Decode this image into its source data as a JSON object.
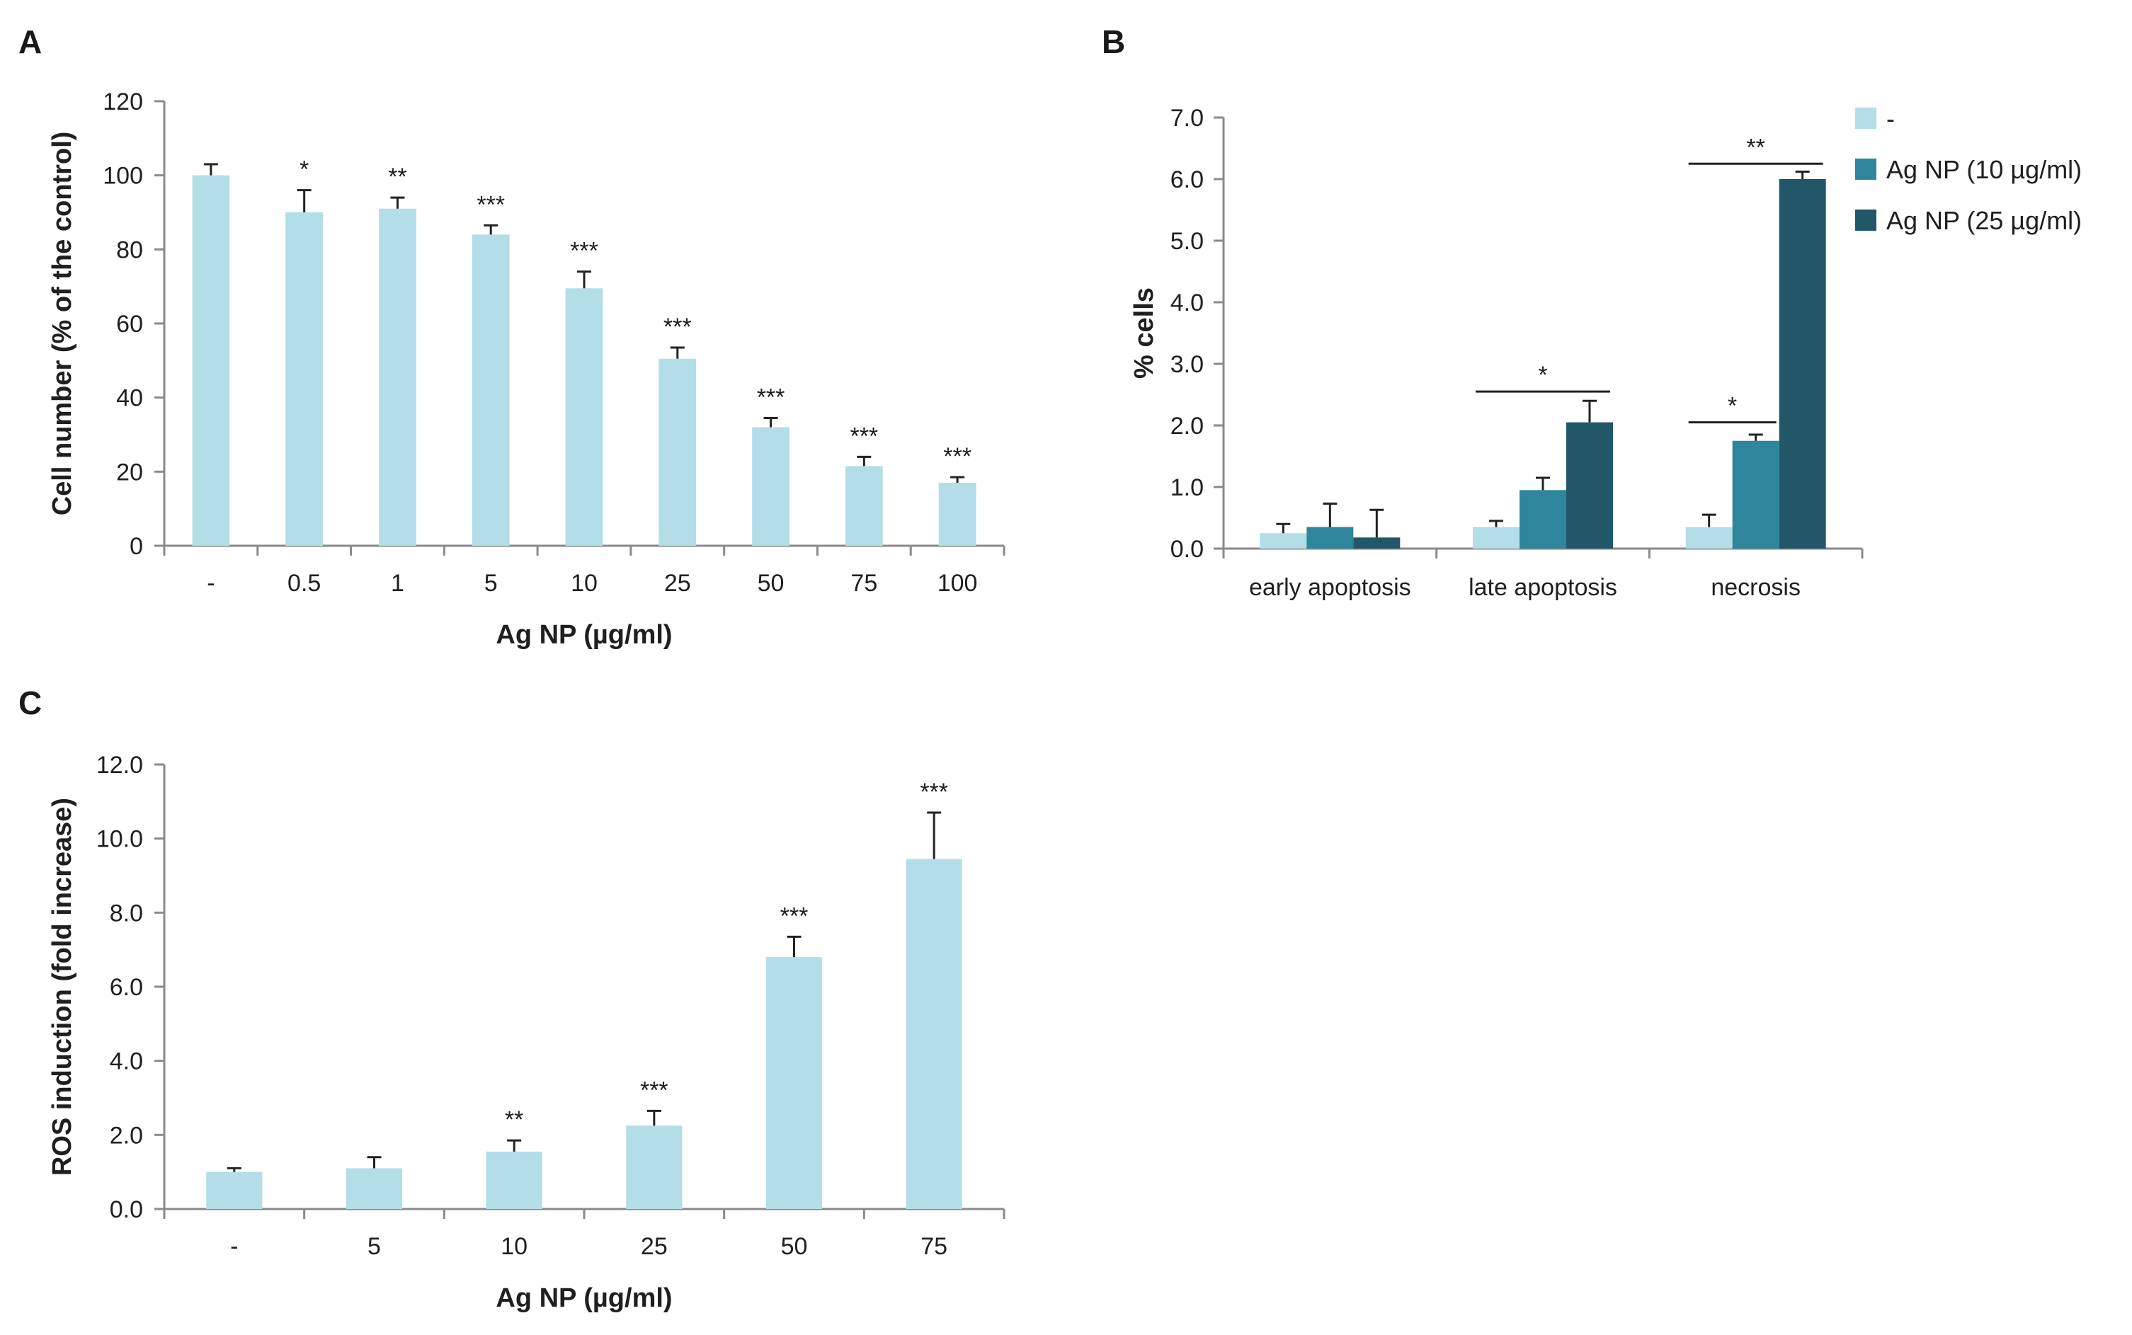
{
  "panels": {
    "a": "A",
    "b": "B",
    "c": "C"
  },
  "colors": {
    "light": "#b3dde7",
    "mid": "#2e859c",
    "dark": "#215767",
    "axis": "#8a8a8a",
    "text": "#1f1f1f"
  },
  "chart_data": [
    {
      "id": "A",
      "type": "bar",
      "title": "",
      "xlabel": "Ag  NP (µg/ml)",
      "ylabel": "Cell number (% of the control)",
      "ylim": [
        0,
        120
      ],
      "yticks": [
        "0",
        "20",
        "40",
        "60",
        "80",
        "100",
        "120"
      ],
      "categories": [
        "-",
        "0.5",
        "1",
        "5",
        "10",
        "25",
        "50",
        "75",
        "100"
      ],
      "values": [
        100,
        90,
        91,
        84,
        69.5,
        50.5,
        32,
        21.5,
        17
      ],
      "errors": [
        3,
        6,
        3,
        2.5,
        4.5,
        3,
        2.5,
        2.5,
        1.5
      ],
      "significance": [
        "",
        "*",
        "**",
        "***",
        "***",
        "***",
        "***",
        "***",
        "***"
      ]
    },
    {
      "id": "B",
      "type": "bar",
      "title": "",
      "xlabel": "",
      "ylabel": "% cells",
      "ylim": [
        0,
        7
      ],
      "yticks": [
        "0.0",
        "1.0",
        "2.0",
        "3.0",
        "4.0",
        "5.0",
        "6.0",
        "7.0"
      ],
      "categories": [
        "early apoptosis",
        "late apoptosis",
        "necrosis"
      ],
      "series": [
        {
          "name": "-",
          "values": [
            0.25,
            0.35,
            0.35
          ],
          "errors": [
            0.15,
            0.1,
            0.2
          ]
        },
        {
          "name": "Ag NP (10 µg/ml)",
          "values": [
            0.35,
            0.95,
            1.75
          ],
          "errors": [
            0.38,
            0.2,
            0.1
          ]
        },
        {
          "name": "Ag NP (25 µg/ml)",
          "values": [
            0.18,
            2.05,
            6.0
          ],
          "errors": [
            0.45,
            0.35,
            0.12
          ]
        }
      ],
      "legend_position": "top-right",
      "significance_brackets": [
        {
          "category": "late apoptosis",
          "from_series": 0,
          "to_series": 2,
          "label": "*",
          "y": 2.55
        },
        {
          "category": "necrosis",
          "from_series": 0,
          "to_series": 1,
          "label": "*",
          "y": 2.05
        },
        {
          "category": "necrosis",
          "from_series": 0,
          "to_series": 2,
          "label": "**",
          "y": 6.25
        }
      ]
    },
    {
      "id": "C",
      "type": "bar",
      "title": "",
      "xlabel": "Ag NP (µg/ml)",
      "ylabel": "ROS induction (fold increase)",
      "ylim": [
        0,
        12
      ],
      "yticks": [
        "0.0",
        "2.0",
        "4.0",
        "6.0",
        "8.0",
        "10.0",
        "12.0"
      ],
      "categories": [
        "-",
        "5",
        "10",
        "25",
        "50",
        "75"
      ],
      "values": [
        1.0,
        1.1,
        1.55,
        2.25,
        6.8,
        9.45
      ],
      "errors": [
        0.1,
        0.3,
        0.3,
        0.4,
        0.55,
        1.25
      ],
      "significance": [
        "",
        "",
        "**",
        "***",
        "***",
        "***"
      ]
    }
  ]
}
